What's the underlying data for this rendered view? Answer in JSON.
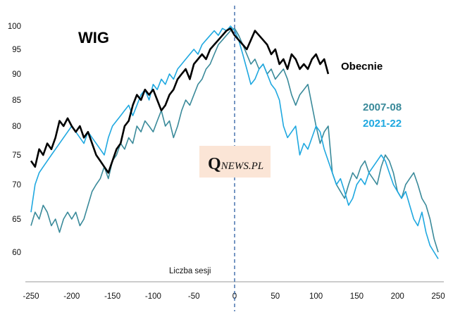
{
  "chart_data": {
    "type": "line",
    "title": "WIG",
    "xlabel": "Liczba sesji",
    "ylabel": "",
    "xlim": [
      -250,
      250
    ],
    "ylim": [
      57,
      101
    ],
    "x_ticks": [
      -250,
      -200,
      -150,
      -100,
      -50,
      0,
      50,
      100,
      150,
      200,
      250
    ],
    "y_ticks": [
      60,
      65,
      70,
      75,
      80,
      85,
      90,
      95,
      100
    ],
    "vline_x": 0,
    "logo_text": {
      "initial": "Q",
      "rest": "NEWS.PL"
    },
    "series": [
      {
        "name": "Obecnie",
        "color": "#000000",
        "x": [
          -250,
          -245,
          -240,
          -235,
          -230,
          -225,
          -220,
          -215,
          -210,
          -205,
          -200,
          -195,
          -190,
          -185,
          -180,
          -175,
          -170,
          -165,
          -160,
          -155,
          -150,
          -145,
          -140,
          -135,
          -130,
          -125,
          -120,
          -115,
          -110,
          -105,
          -100,
          -95,
          -90,
          -85,
          -80,
          -75,
          -70,
          -65,
          -60,
          -55,
          -50,
          -45,
          -40,
          -35,
          -30,
          -25,
          -20,
          -15,
          -10,
          -5,
          0,
          5,
          10,
          15,
          20,
          25,
          30,
          35,
          40,
          45,
          50,
          55,
          60,
          65,
          70,
          75,
          80,
          85,
          90,
          95,
          100,
          105,
          110,
          115
        ],
        "values": [
          74,
          73,
          76,
          75,
          77,
          76,
          78,
          81,
          80,
          81.5,
          80,
          79,
          80,
          78,
          79,
          77,
          75,
          74,
          73,
          72,
          74,
          76,
          77,
          80,
          81,
          84,
          86,
          85,
          87,
          86,
          87,
          85,
          83,
          84,
          86,
          87,
          89,
          90,
          91,
          89,
          92,
          93,
          94,
          93,
          95,
          96,
          97,
          98,
          99,
          99.5,
          98,
          97,
          96,
          95,
          97,
          99,
          98,
          97,
          96,
          94,
          95,
          92,
          93,
          91,
          94,
          93,
          91,
          92,
          91,
          93,
          94,
          92,
          93,
          90
        ]
      },
      {
        "name": "2007-08",
        "color": "#3a8a9a",
        "x": [
          -250,
          -245,
          -240,
          -235,
          -230,
          -225,
          -220,
          -215,
          -210,
          -205,
          -200,
          -195,
          -190,
          -185,
          -180,
          -175,
          -170,
          -165,
          -160,
          -155,
          -150,
          -145,
          -140,
          -135,
          -130,
          -125,
          -120,
          -115,
          -110,
          -105,
          -100,
          -95,
          -90,
          -85,
          -80,
          -75,
          -70,
          -65,
          -60,
          -55,
          -50,
          -45,
          -40,
          -35,
          -30,
          -25,
          -20,
          -15,
          -10,
          -5,
          0,
          5,
          10,
          15,
          20,
          25,
          30,
          35,
          40,
          45,
          50,
          55,
          60,
          65,
          70,
          75,
          80,
          85,
          90,
          95,
          100,
          105,
          110,
          115,
          120,
          125,
          130,
          135,
          140,
          145,
          150,
          155,
          160,
          165,
          170,
          175,
          180,
          185,
          190,
          195,
          200,
          205,
          210,
          215,
          220,
          225,
          230,
          235,
          240,
          245,
          250
        ],
        "values": [
          64,
          66,
          65,
          67,
          66,
          64,
          65,
          63,
          65,
          66,
          65,
          66,
          64,
          65,
          67,
          69,
          70,
          71,
          73,
          71,
          74,
          75,
          77,
          76,
          78,
          77,
          80,
          79,
          81,
          80,
          79,
          81,
          83,
          80,
          81,
          78,
          80,
          83,
          85,
          84,
          86,
          88,
          89,
          91,
          92,
          94,
          96,
          97,
          98,
          99,
          99.5,
          98,
          96,
          94,
          92,
          93,
          91,
          92,
          90,
          91,
          89,
          90,
          91,
          89,
          86,
          84,
          86,
          87,
          88,
          84,
          80,
          77,
          79,
          80,
          72,
          70,
          69,
          68,
          70,
          72,
          71,
          73,
          74,
          72,
          71,
          70,
          73,
          75,
          74,
          72,
          69,
          68,
          70,
          71,
          72,
          70,
          68,
          67,
          65,
          62,
          60
        ]
      },
      {
        "name": "2021-22",
        "color": "#1fa8e0",
        "x": [
          -250,
          -245,
          -240,
          -235,
          -230,
          -225,
          -220,
          -215,
          -210,
          -205,
          -200,
          -195,
          -190,
          -185,
          -180,
          -175,
          -170,
          -165,
          -160,
          -155,
          -150,
          -145,
          -140,
          -135,
          -130,
          -125,
          -120,
          -115,
          -110,
          -105,
          -100,
          -95,
          -90,
          -85,
          -80,
          -75,
          -70,
          -65,
          -60,
          -55,
          -50,
          -45,
          -40,
          -35,
          -30,
          -25,
          -20,
          -15,
          -10,
          -5,
          0,
          5,
          10,
          15,
          20,
          25,
          30,
          35,
          40,
          45,
          50,
          55,
          60,
          65,
          70,
          75,
          80,
          85,
          90,
          95,
          100,
          105,
          110,
          115,
          120,
          125,
          130,
          135,
          140,
          145,
          150,
          155,
          160,
          165,
          170,
          175,
          180,
          185,
          190,
          195,
          200,
          205,
          210,
          215,
          220,
          225,
          230,
          235,
          240,
          245,
          250
        ],
        "values": [
          66,
          70,
          72,
          73,
          74,
          75,
          76,
          77,
          78,
          79,
          80,
          79,
          78,
          77,
          79,
          78,
          77,
          76,
          75,
          78,
          80,
          81,
          82,
          83,
          84,
          82,
          84,
          86,
          87,
          85,
          88,
          87,
          89,
          88,
          90,
          89,
          91,
          92,
          93,
          94,
          95,
          94,
          96,
          97,
          98,
          99,
          98,
          99.5,
          99,
          100,
          99,
          97,
          94,
          91,
          88,
          89,
          91,
          92,
          90,
          88,
          87,
          85,
          80,
          78,
          79,
          80,
          75,
          77,
          76,
          78,
          80,
          79,
          76,
          74,
          72,
          70,
          71,
          69,
          67,
          68,
          70,
          71,
          70,
          72,
          73,
          74,
          75,
          74,
          72,
          70,
          69,
          68,
          69,
          67,
          65,
          64,
          66,
          63,
          61,
          60,
          59
        ]
      }
    ]
  }
}
